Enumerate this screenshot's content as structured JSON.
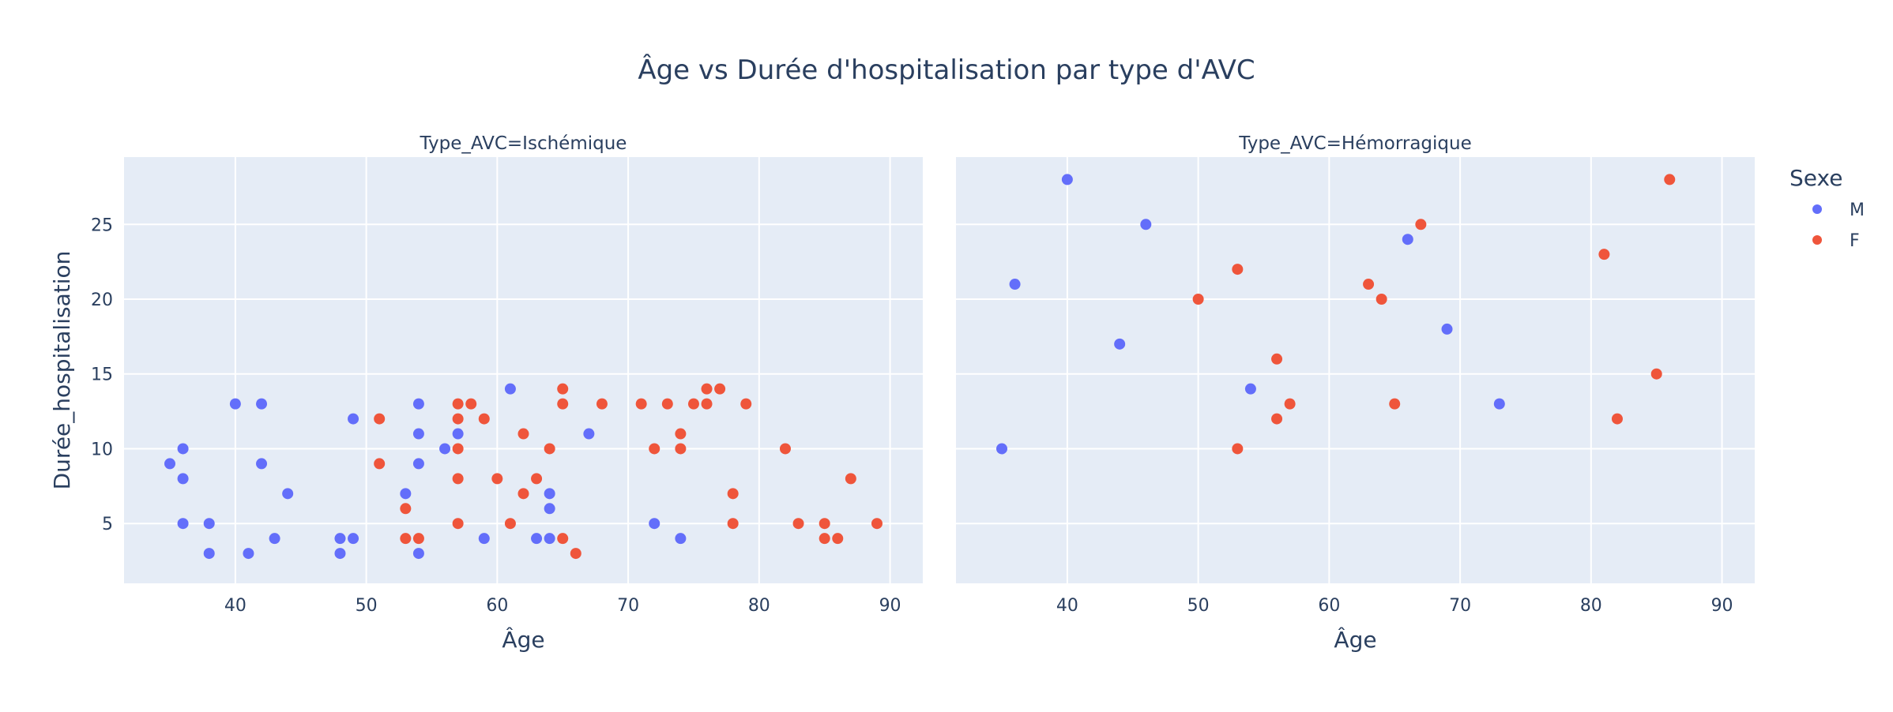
{
  "colors": {
    "plot_bg": "#e5ecf6",
    "grid": "#ffffff",
    "text": "#2a3f5f",
    "M": "#636efa",
    "F": "#ef553b"
  },
  "chart_data": {
    "type": "scatter",
    "title": "Âge vs Durée d'hospitalisation par type d'AVC",
    "xlabel": "Âge",
    "ylabel": "Durée_hospitalisation",
    "xlim": [
      31.5,
      92.5
    ],
    "ylim": [
      1,
      29.5
    ],
    "x_ticks": [
      40,
      50,
      60,
      70,
      80,
      90
    ],
    "y_ticks": [
      5,
      10,
      15,
      20,
      25
    ],
    "grid": true,
    "legend": {
      "title": "Sexe",
      "placement": "right",
      "entries": [
        "M",
        "F"
      ]
    },
    "panels": [
      {
        "title": "Type_AVC=Ischémique",
        "series": [
          {
            "name": "M",
            "points": [
              [
                35,
                9
              ],
              [
                36,
                10
              ],
              [
                36,
                8
              ],
              [
                36,
                5
              ],
              [
                38,
                5
              ],
              [
                38,
                3
              ],
              [
                40,
                13
              ],
              [
                41,
                3
              ],
              [
                42,
                13
              ],
              [
                42,
                9
              ],
              [
                43,
                4
              ],
              [
                44,
                7
              ],
              [
                48,
                4
              ],
              [
                48,
                3
              ],
              [
                49,
                12
              ],
              [
                49,
                4
              ],
              [
                53,
                7
              ],
              [
                54,
                13
              ],
              [
                54,
                11
              ],
              [
                54,
                9
              ],
              [
                54,
                3
              ],
              [
                56,
                10
              ],
              [
                57,
                11
              ],
              [
                59,
                4
              ],
              [
                61,
                14
              ],
              [
                63,
                4
              ],
              [
                64,
                7
              ],
              [
                64,
                6
              ],
              [
                64,
                4
              ],
              [
                67,
                11
              ],
              [
                72,
                5
              ],
              [
                74,
                4
              ]
            ]
          },
          {
            "name": "F",
            "points": [
              [
                51,
                12
              ],
              [
                51,
                9
              ],
              [
                53,
                6
              ],
              [
                53,
                4
              ],
              [
                54,
                4
              ],
              [
                57,
                13
              ],
              [
                57,
                12
              ],
              [
                57,
                10
              ],
              [
                57,
                8
              ],
              [
                57,
                5
              ],
              [
                58,
                13
              ],
              [
                59,
                12
              ],
              [
                60,
                8
              ],
              [
                61,
                5
              ],
              [
                62,
                11
              ],
              [
                62,
                7
              ],
              [
                63,
                8
              ],
              [
                64,
                10
              ],
              [
                65,
                14
              ],
              [
                65,
                13
              ],
              [
                65,
                4
              ],
              [
                66,
                3
              ],
              [
                68,
                13
              ],
              [
                71,
                13
              ],
              [
                72,
                10
              ],
              [
                73,
                13
              ],
              [
                74,
                11
              ],
              [
                74,
                10
              ],
              [
                75,
                13
              ],
              [
                76,
                14
              ],
              [
                76,
                13
              ],
              [
                77,
                14
              ],
              [
                78,
                7
              ],
              [
                78,
                5
              ],
              [
                79,
                13
              ],
              [
                82,
                10
              ],
              [
                83,
                5
              ],
              [
                85,
                5
              ],
              [
                85,
                4
              ],
              [
                86,
                4
              ],
              [
                87,
                8
              ],
              [
                89,
                5
              ]
            ]
          }
        ]
      },
      {
        "title": "Type_AVC=Hémorragique",
        "series": [
          {
            "name": "M",
            "points": [
              [
                35,
                10
              ],
              [
                36,
                21
              ],
              [
                40,
                28
              ],
              [
                44,
                17
              ],
              [
                46,
                25
              ],
              [
                54,
                14
              ],
              [
                66,
                24
              ],
              [
                69,
                18
              ],
              [
                73,
                13
              ]
            ]
          },
          {
            "name": "F",
            "points": [
              [
                50,
                20
              ],
              [
                53,
                22
              ],
              [
                53,
                10
              ],
              [
                56,
                16
              ],
              [
                56,
                12
              ],
              [
                57,
                13
              ],
              [
                63,
                21
              ],
              [
                64,
                20
              ],
              [
                65,
                13
              ],
              [
                67,
                25
              ],
              [
                81,
                23
              ],
              [
                82,
                12
              ],
              [
                85,
                15
              ],
              [
                86,
                28
              ]
            ]
          }
        ]
      }
    ]
  }
}
